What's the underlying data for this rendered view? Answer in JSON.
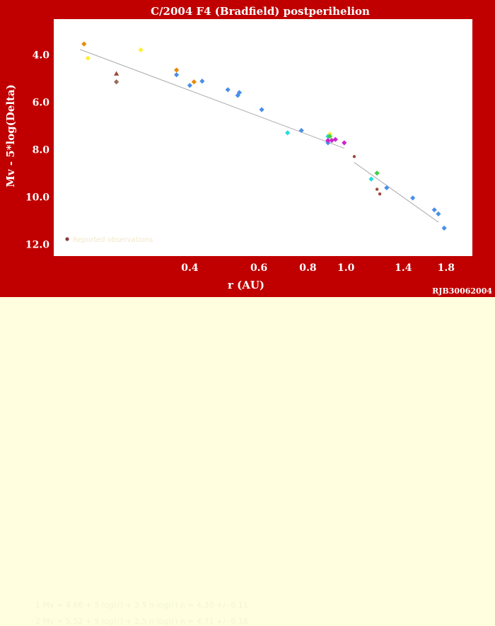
{
  "credit": "RJB30062004",
  "fits": [
    "1  Mv = 4.66 + 5 log(r) + 2.5 n log(r)    n = 4.30 +/- 0.11",
    "2  Mv = 5.52 + 5 log(r) + 2.5 n log(r)    n = 4.71 +/- 0.16"
  ],
  "colors": {
    "frame": "#c00000",
    "plot_bg": "#ffffff",
    "footer_bg": "#ffffe0",
    "fit_line": "#aaaaaa",
    "text": "#ffffff"
  },
  "chart_data": {
    "type": "scatter",
    "title": "C/2004 F4 (Bradfield)  postperihelion",
    "xlabel": "r (AU)",
    "ylabel": "Mv - 5*log(Delta)",
    "x_scale": "log",
    "y_inverted": true,
    "xlim": [
      0.18,
      2.1
    ],
    "ylim": [
      12.5,
      2.5
    ],
    "x_ticks": [
      {
        "value": 0.4,
        "label": "0.4"
      },
      {
        "value": 0.6,
        "label": "0.6"
      },
      {
        "value": 0.8,
        "label": "0.8"
      },
      {
        "value": 1.0,
        "label": "1.0"
      },
      {
        "value": 1.4,
        "label": "1.4"
      },
      {
        "value": 1.8,
        "label": "1.8"
      }
    ],
    "y_ticks": [
      {
        "value": 4.0,
        "label": "4.0"
      },
      {
        "value": 6.0,
        "label": "6.0"
      },
      {
        "value": 8.0,
        "label": "8.0"
      },
      {
        "value": 10.0,
        "label": "10.0"
      },
      {
        "value": 12.0,
        "label": "12.0"
      }
    ],
    "legend": {
      "placement": "bottom-left",
      "entries": [
        {
          "label": "Reported observations",
          "color": "#8b3a3a"
        }
      ]
    },
    "fit_lines": [
      {
        "x": [
          0.21,
          0.99
        ],
        "y": [
          3.78,
          7.95
        ]
      },
      {
        "x": [
          1.05,
          1.72
        ],
        "y": [
          8.55,
          11.07
        ]
      }
    ],
    "series": [
      {
        "color": "#4a8fe8",
        "marker": "diamond",
        "points": [
          [
            0.37,
            4.85
          ],
          [
            0.4,
            5.3
          ],
          [
            0.43,
            5.12
          ],
          [
            0.5,
            5.48
          ],
          [
            0.53,
            5.72
          ],
          [
            0.535,
            5.6
          ],
          [
            0.61,
            6.32
          ],
          [
            0.77,
            7.2
          ],
          [
            0.9,
            7.72
          ],
          [
            1.27,
            9.62
          ],
          [
            1.48,
            10.05
          ],
          [
            1.68,
            10.55
          ],
          [
            1.72,
            10.72
          ],
          [
            1.78,
            11.32
          ]
        ]
      },
      {
        "color": "#e8890c",
        "marker": "diamond",
        "points": [
          [
            0.215,
            3.55
          ],
          [
            0.37,
            4.65
          ],
          [
            0.41,
            5.15
          ]
        ]
      },
      {
        "color": "#ffee33",
        "marker": "diamond",
        "points": [
          [
            0.22,
            4.15
          ],
          [
            0.3,
            3.8
          ],
          [
            0.91,
            7.35
          ]
        ]
      },
      {
        "color": "#9b6b5a",
        "marker": "diamond",
        "points": [
          [
            0.26,
            5.15
          ]
        ]
      },
      {
        "color": "#9b4b3a",
        "marker": "triangle",
        "points": [
          [
            0.26,
            4.8
          ]
        ]
      },
      {
        "color": "#22dddd",
        "marker": "diamond",
        "points": [
          [
            0.71,
            7.3
          ],
          [
            0.9,
            7.45
          ],
          [
            1.16,
            9.25
          ]
        ]
      },
      {
        "color": "#cc22cc",
        "marker": "diamond",
        "points": [
          [
            0.9,
            7.62
          ],
          [
            0.92,
            7.62
          ],
          [
            0.94,
            7.58
          ],
          [
            0.99,
            7.72
          ]
        ]
      },
      {
        "color": "#44cc44",
        "marker": "diamond",
        "points": [
          [
            0.91,
            7.45
          ],
          [
            1.2,
            9.0
          ]
        ]
      },
      {
        "color": "#9b4b3a",
        "marker": "circle",
        "points": [
          [
            1.05,
            8.3
          ],
          [
            1.2,
            9.68
          ],
          [
            1.22,
            9.88
          ]
        ]
      }
    ]
  }
}
